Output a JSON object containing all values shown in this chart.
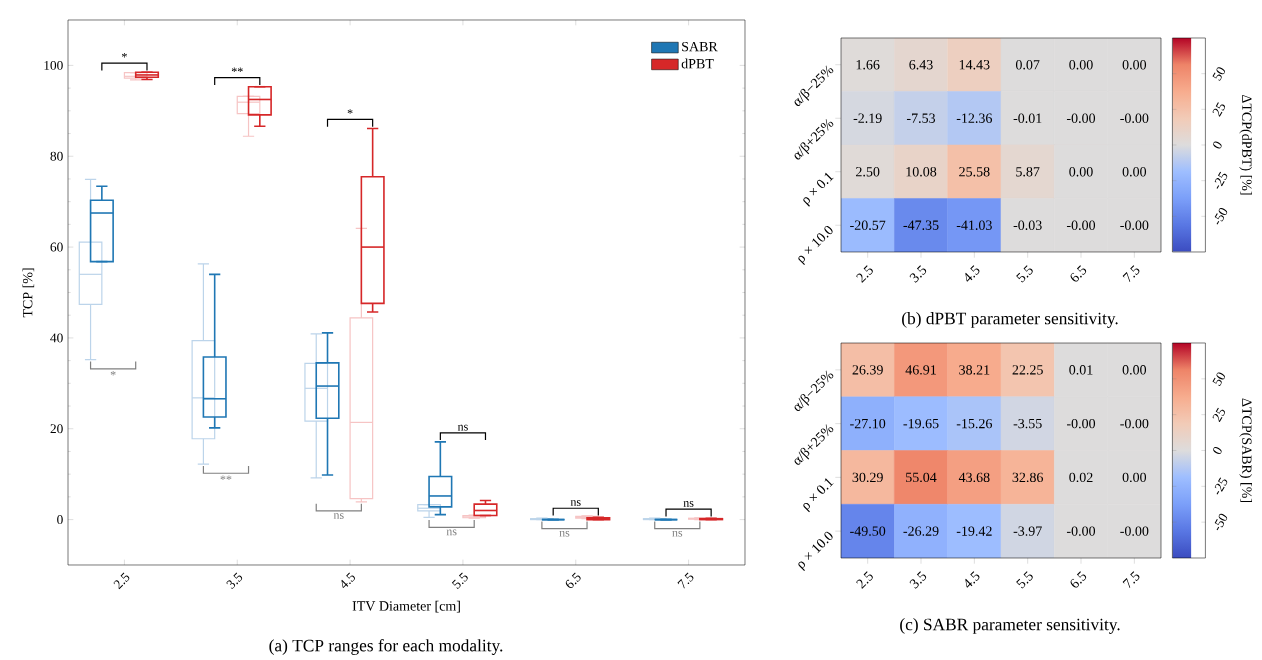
{
  "chart_data": [
    {
      "type": "box",
      "xlabel": "ITV Diameter [cm]",
      "ylabel": "TCP [%]",
      "categories": [
        "2.5",
        "3.5",
        "4.5",
        "5.5",
        "6.5",
        "7.5"
      ],
      "ylim": [
        -10,
        110
      ],
      "yticks": [
        0,
        20,
        40,
        60,
        80,
        100
      ],
      "legend": "top right",
      "series": [
        {
          "color": "#bcd4ea",
          "boxes": [
            {
              "low": 35.2,
              "q1": 47.4,
              "median": 54.0,
              "q3": 61.1,
              "high": 74.9
            },
            {
              "low": 12.2,
              "q1": 17.8,
              "median": 26.8,
              "q3": 39.4,
              "high": 56.3
            },
            {
              "low": 9.2,
              "q1": 21.7,
              "median": 28.9,
              "q3": 34.4,
              "high": 40.9
            },
            {
              "low": 0.5,
              "q1": 1.9,
              "median": 2.5,
              "q3": 3.3,
              "high": 3.3
            },
            {
              "low": 0.0,
              "q1": 0.0,
              "median": 0.1,
              "q3": 0.2,
              "high": 0.3
            },
            {
              "low": 0.0,
              "q1": 0.0,
              "median": 0.1,
              "q3": 0.2,
              "high": 0.3
            }
          ]
        },
        {
          "color": "#f6c4c4",
          "boxes": [
            {
              "low": 96.8,
              "q1": 97.2,
              "median": 97.6,
              "q3": 98.4,
              "high": 98.4
            },
            {
              "low": 84.4,
              "q1": 89.4,
              "median": 91.9,
              "q3": 93.2,
              "high": 93.2
            },
            {
              "low": 3.9,
              "q1": 4.6,
              "median": 21.4,
              "q3": 44.4,
              "high": 64.1
            },
            {
              "low": 0.3,
              "q1": 0.4,
              "median": 0.6,
              "q3": 0.9,
              "high": 1.0
            },
            {
              "low": 0.2,
              "q1": 0.3,
              "median": 0.5,
              "q3": 0.7,
              "high": 0.8
            },
            {
              "low": 0.0,
              "q1": 0.1,
              "median": 0.2,
              "q3": 0.3,
              "high": 0.4
            }
          ]
        },
        {
          "name": "SABR",
          "color": "#1f77b4",
          "boxes": [
            {
              "low": 56.8,
              "q1": 56.8,
              "median": 67.5,
              "q3": 70.3,
              "high": 73.4
            },
            {
              "low": 20.2,
              "q1": 22.6,
              "median": 26.6,
              "q3": 35.8,
              "high": 54.0
            },
            {
              "low": 9.8,
              "q1": 22.3,
              "median": 29.4,
              "q3": 34.5,
              "high": 41.1
            },
            {
              "low": 1.1,
              "q1": 2.8,
              "median": 5.2,
              "q3": 9.5,
              "high": 17.1
            },
            {
              "low": 0.0,
              "q1": 0.0,
              "median": 0.0,
              "q3": 0.0,
              "high": 0.0
            },
            {
              "low": 0.0,
              "q1": 0.0,
              "median": 0.0,
              "q3": 0.0,
              "high": 0.0
            }
          ]
        },
        {
          "name": "dPBT",
          "color": "#d62728",
          "boxes": [
            {
              "low": 96.9,
              "q1": 97.4,
              "median": 97.9,
              "q3": 98.5,
              "high": 98.5
            },
            {
              "low": 86.6,
              "q1": 89.1,
              "median": 92.5,
              "q3": 95.3,
              "high": 95.3
            },
            {
              "low": 45.7,
              "q1": 47.6,
              "median": 60.0,
              "q3": 75.5,
              "high": 86.1
            },
            {
              "low": 0.9,
              "q1": 0.9,
              "median": 2.0,
              "q3": 3.4,
              "high": 4.2
            },
            {
              "low": 0.0,
              "q1": 0.0,
              "median": 0.2,
              "q3": 0.4,
              "high": 0.5
            },
            {
              "low": 0.0,
              "q1": 0.0,
              "median": 0.1,
              "q3": 0.2,
              "high": 0.3
            }
          ]
        }
      ],
      "annotations": [
        "*",
        "**",
        "*",
        "ns",
        "ns",
        "ns",
        "*",
        "**",
        "ns",
        "ns",
        "ns",
        "ns",
        "(a) TCP ranges for each modality."
      ]
    },
    {
      "type": "heatmap",
      "categories": [
        "2.5",
        "3.5",
        "4.5",
        "5.5",
        "6.5",
        "7.5"
      ],
      "y_categories": [
        "α/β−25%",
        "α/β+25%",
        "ρ × 0.1",
        "ρ × 10.0"
      ],
      "clim": [
        -75,
        75
      ],
      "cticks": [
        -50,
        -25,
        0,
        25,
        50
      ],
      "clabel": "ΔTCP(dPBT) [%]",
      "cells": [
        [
          1.66,
          6.43,
          14.43,
          0.07,
          0.0,
          0.0
        ],
        [
          -2.19,
          -7.53,
          -12.36,
          -0.01,
          -0.0,
          -0.0
        ],
        [
          2.5,
          10.08,
          25.58,
          5.87,
          0.0,
          0.0
        ],
        [
          -20.57,
          -47.35,
          -41.03,
          -0.03,
          -0.0,
          -0.0
        ]
      ],
      "cell_labels": [
        [
          "1.66",
          "6.43",
          "14.43",
          "0.07",
          "0.00",
          "0.00"
        ],
        [
          "-2.19",
          "-7.53",
          "-12.36",
          "-0.01",
          "-0.00",
          "-0.00"
        ],
        [
          "2.50",
          "10.08",
          "25.58",
          "5.87",
          "0.00",
          "0.00"
        ],
        [
          "-20.57",
          "-47.35",
          "-41.03",
          "-0.03",
          "-0.00",
          "-0.00"
        ]
      ],
      "annotations": [
        "(b) dPBT parameter sensitivity."
      ]
    },
    {
      "type": "heatmap",
      "categories": [
        "2.5",
        "3.5",
        "4.5",
        "5.5",
        "6.5",
        "7.5"
      ],
      "y_categories": [
        "α/β−25%",
        "α/β+25%",
        "ρ × 0.1",
        "ρ × 10.0"
      ],
      "clim": [
        -75,
        75
      ],
      "cticks": [
        -50,
        -25,
        0,
        25,
        50
      ],
      "clabel": "ΔTCP(SABR) [%]",
      "cells": [
        [
          26.39,
          46.91,
          38.21,
          22.25,
          0.01,
          0.0
        ],
        [
          -27.1,
          -19.65,
          -15.26,
          -3.55,
          -0.0,
          -0.0
        ],
        [
          30.29,
          55.04,
          43.68,
          32.86,
          0.02,
          0.0
        ],
        [
          -49.5,
          -26.29,
          -19.42,
          -3.97,
          -0.0,
          -0.0
        ]
      ],
      "cell_labels": [
        [
          "26.39",
          "46.91",
          "38.21",
          "22.25",
          "0.01",
          "0.00"
        ],
        [
          "-27.10",
          "-19.65",
          "-15.26",
          "-3.55",
          "-0.00",
          "-0.00"
        ],
        [
          "30.29",
          "55.04",
          "43.68",
          "32.86",
          "0.02",
          "0.00"
        ],
        [
          "-49.50",
          "-26.29",
          "-19.42",
          "-3.97",
          "-0.00",
          "-0.00"
        ]
      ],
      "annotations": [
        "(c) SABR parameter sensitivity."
      ]
    }
  ]
}
